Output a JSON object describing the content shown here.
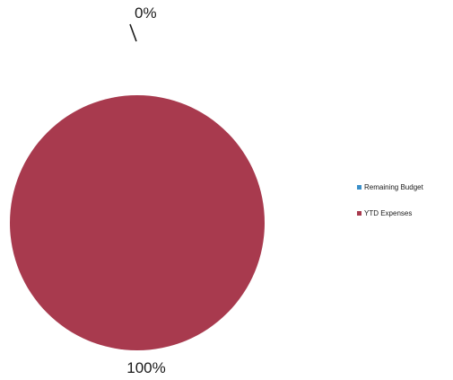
{
  "chart_data": {
    "type": "pie",
    "title": "",
    "slices": [
      {
        "label": "Remaining Budget",
        "value": 0,
        "percent_label": "0%",
        "color": "#3a8fc9"
      },
      {
        "label": "YTD Expenses",
        "value": 100,
        "percent_label": "100%",
        "color": "#a83a4e"
      }
    ],
    "legend_position": "right"
  }
}
